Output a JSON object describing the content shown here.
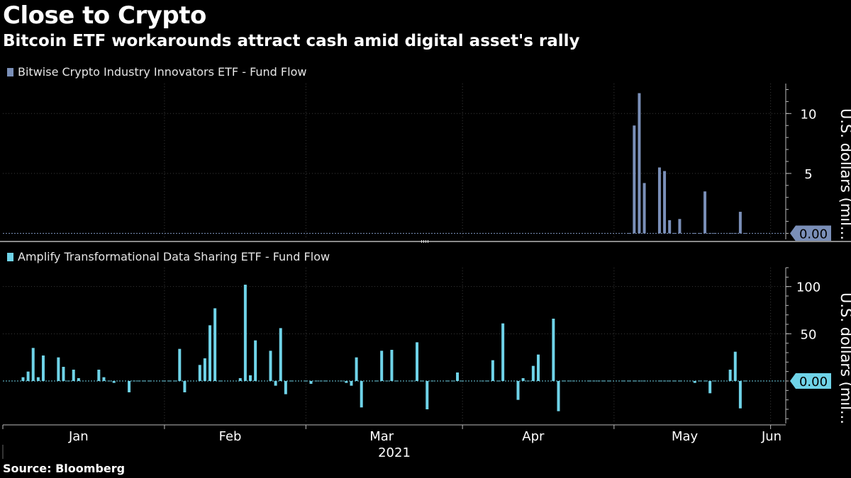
{
  "title": "Close to Crypto",
  "subtitle": "Bitcoin ETF workarounds attract cash amid digital asset's rally",
  "source": "Source: Bloomberg",
  "colors": {
    "background": "#000000",
    "top_series": "#7a8fb8",
    "bottom_series": "#6fd3e8",
    "grid": "#3a3a3a",
    "axis": "#bbbbbb"
  },
  "chart_data": [
    {
      "type": "bar",
      "title": "",
      "ylabel": "U.S. dollars (mil...",
      "ylim": [
        -0.5,
        12.5
      ],
      "yticks": [
        5,
        10
      ],
      "current_value_label": "0.00",
      "series": [
        {
          "name": "Bitwise Crypto Industry Innovators ETF - Fund Flow",
          "x": [
            "2021-05-04",
            "2021-05-05",
            "2021-05-06",
            "2021-05-07",
            "2021-05-10",
            "2021-05-11",
            "2021-05-12",
            "2021-05-13",
            "2021-05-14",
            "2021-05-17",
            "2021-05-18",
            "2021-05-19",
            "2021-05-20",
            "2021-05-21",
            "2021-05-24",
            "2021-05-25",
            "2021-05-26",
            "2021-05-27"
          ],
          "values": [
            0,
            9,
            11.7,
            4.2,
            5.5,
            5.2,
            1.1,
            0,
            1.2,
            0,
            0,
            3.5,
            0,
            0,
            0,
            0,
            1.8,
            0
          ]
        }
      ]
    },
    {
      "type": "bar",
      "title": "",
      "ylabel": "U.S. dollars (mil...",
      "ylim": [
        -45,
        120
      ],
      "yticks": [
        50,
        100
      ],
      "current_value_label": "0.00",
      "series": [
        {
          "name": "Amplify Transformational Data Sharing ETF - Fund Flow",
          "x": [
            "2021-01-04",
            "2021-01-05",
            "2021-01-06",
            "2021-01-07",
            "2021-01-08",
            "2021-01-11",
            "2021-01-12",
            "2021-01-13",
            "2021-01-14",
            "2021-01-15",
            "2021-01-19",
            "2021-01-20",
            "2021-01-21",
            "2021-01-22",
            "2021-01-25",
            "2021-01-26",
            "2021-01-27",
            "2021-01-28",
            "2021-01-29",
            "2021-02-01",
            "2021-02-02",
            "2021-02-03",
            "2021-02-04",
            "2021-02-05",
            "2021-02-08",
            "2021-02-09",
            "2021-02-10",
            "2021-02-11",
            "2021-02-12",
            "2021-02-16",
            "2021-02-17",
            "2021-02-18",
            "2021-02-19",
            "2021-02-22",
            "2021-02-23",
            "2021-02-24",
            "2021-02-25",
            "2021-02-26",
            "2021-03-01",
            "2021-03-02",
            "2021-03-03",
            "2021-03-04",
            "2021-03-05",
            "2021-03-08",
            "2021-03-09",
            "2021-03-10",
            "2021-03-11",
            "2021-03-12",
            "2021-03-15",
            "2021-03-16",
            "2021-03-17",
            "2021-03-18",
            "2021-03-19",
            "2021-03-22",
            "2021-03-23",
            "2021-03-24",
            "2021-03-25",
            "2021-03-26",
            "2021-03-29",
            "2021-03-30",
            "2021-03-31",
            "2021-04-01",
            "2021-04-05",
            "2021-04-06",
            "2021-04-07",
            "2021-04-08",
            "2021-04-09",
            "2021-04-12",
            "2021-04-13",
            "2021-04-14",
            "2021-04-15",
            "2021-04-16",
            "2021-04-19",
            "2021-04-20",
            "2021-04-21",
            "2021-04-22",
            "2021-04-23",
            "2021-04-26",
            "2021-04-27",
            "2021-04-28",
            "2021-04-29",
            "2021-04-30",
            "2021-05-03",
            "2021-05-04",
            "2021-05-05",
            "2021-05-06",
            "2021-05-07",
            "2021-05-10",
            "2021-05-11",
            "2021-05-12",
            "2021-05-13",
            "2021-05-14",
            "2021-05-17",
            "2021-05-18",
            "2021-05-19",
            "2021-05-20",
            "2021-05-21",
            "2021-05-24",
            "2021-05-25",
            "2021-05-26",
            "2021-05-27"
          ],
          "values": [
            4,
            10,
            35,
            4,
            27,
            25,
            15,
            0,
            12,
            3,
            12,
            4,
            0,
            -2,
            -12,
            0,
            0,
            0,
            0,
            0,
            0,
            0,
            34,
            -12,
            17,
            24,
            59,
            77,
            0,
            3,
            102,
            6,
            43,
            32,
            -5,
            56,
            -14,
            0,
            0,
            -3,
            0,
            0,
            0,
            0,
            -2,
            -5,
            25,
            -28,
            0,
            32,
            0,
            33,
            0,
            0,
            41,
            0,
            -30,
            0,
            0,
            0,
            9,
            0,
            0,
            0,
            22,
            0,
            61,
            -20,
            3,
            0,
            16,
            28,
            66,
            -32,
            0,
            0,
            0,
            0,
            0,
            0,
            0,
            0,
            0,
            0,
            0,
            0,
            0,
            0,
            0,
            0,
            0,
            0,
            -2,
            0,
            0,
            -13,
            0,
            12,
            31,
            -29,
            0
          ]
        }
      ]
    }
  ],
  "xaxis": {
    "ticks": [
      {
        "label": "Jan",
        "date": "2021-01-15"
      },
      {
        "label": "Feb",
        "date": "2021-02-14"
      },
      {
        "label": "Mar",
        "date": "2021-03-16"
      },
      {
        "label": "Apr",
        "date": "2021-04-15"
      },
      {
        "label": "May",
        "date": "2021-05-15"
      },
      {
        "label": "Jun",
        "date": "2021-06-01"
      }
    ],
    "year_label": "2021"
  }
}
